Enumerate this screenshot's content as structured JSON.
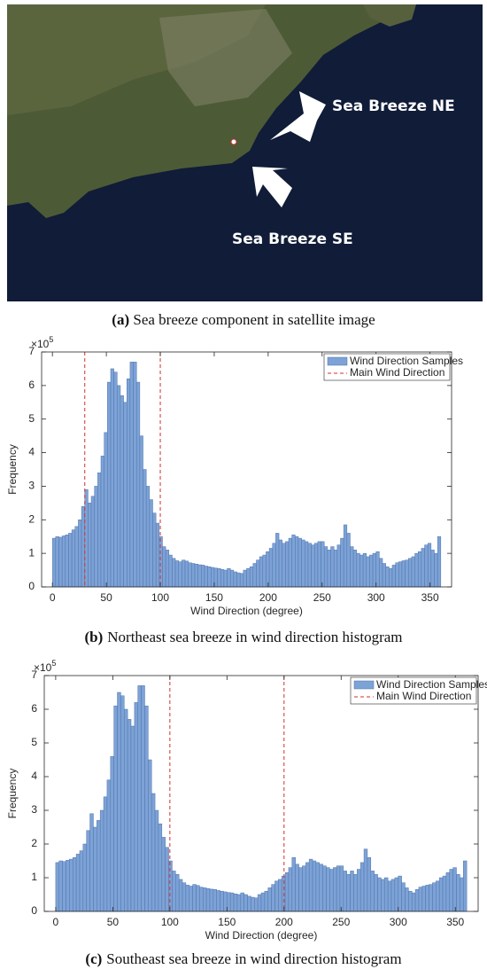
{
  "figure_a": {
    "labels": [
      "Sea Breeze NE",
      "Sea Breeze SE"
    ],
    "caption_label": "(a)",
    "caption": "Sea breeze component in satellite image"
  },
  "chart_data": [
    {
      "type": "histogram",
      "caption_label": "(b)",
      "caption": "Northeast sea breeze in wind direction histogram",
      "xlabel": "Wind Direction (degree)",
      "ylabel": "Frequency",
      "y_multiplier": {
        "base": "×10",
        "exponent": "5"
      },
      "xlim": [
        -10,
        370
      ],
      "xticks": [
        0,
        50,
        100,
        150,
        200,
        250,
        300,
        350
      ],
      "ylim": [
        0,
        7
      ],
      "yticks": [
        0,
        1,
        2,
        3,
        4,
        5,
        6,
        7
      ],
      "legend": "upper right",
      "series": [
        {
          "name": "Wind Direction Samples",
          "color": "#7da2d6"
        },
        {
          "name": "Main Wind Direction",
          "color": "#d0312d"
        }
      ],
      "vlines": [
        30,
        100
      ],
      "bins": [
        0,
        3,
        6,
        9,
        12,
        15,
        18,
        21,
        24,
        27,
        30,
        33,
        36,
        39,
        42,
        45,
        48,
        51,
        54,
        57,
        60,
        63,
        66,
        69,
        72,
        75,
        78,
        81,
        84,
        87,
        90,
        93,
        96,
        99,
        102,
        105,
        108,
        111,
        114,
        117,
        120,
        123,
        126,
        129,
        132,
        135,
        138,
        141,
        144,
        147,
        150,
        153,
        156,
        159,
        162,
        165,
        168,
        171,
        174,
        177,
        180,
        183,
        186,
        189,
        192,
        195,
        198,
        201,
        204,
        207,
        210,
        213,
        216,
        219,
        222,
        225,
        228,
        231,
        234,
        237,
        240,
        243,
        246,
        249,
        252,
        255,
        258,
        261,
        264,
        267,
        270,
        273,
        276,
        279,
        282,
        285,
        288,
        291,
        294,
        297,
        300,
        303,
        306,
        309,
        312,
        315,
        318,
        321,
        324,
        327,
        330,
        333,
        336,
        339,
        342,
        345,
        348,
        351,
        354,
        357,
        360
      ],
      "counts": [
        1.45,
        1.5,
        1.48,
        1.52,
        1.55,
        1.6,
        1.7,
        1.8,
        2.0,
        2.4,
        2.9,
        2.5,
        2.7,
        3.0,
        3.4,
        3.9,
        4.6,
        6.1,
        6.5,
        6.4,
        6.0,
        5.7,
        5.5,
        6.2,
        6.7,
        6.7,
        6.1,
        4.5,
        3.5,
        3.0,
        2.6,
        2.2,
        1.9,
        1.5,
        1.2,
        1.1,
        0.95,
        0.85,
        0.78,
        0.75,
        0.8,
        0.77,
        0.72,
        0.7,
        0.68,
        0.66,
        0.65,
        0.62,
        0.6,
        0.58,
        0.56,
        0.55,
        0.52,
        0.5,
        0.55,
        0.5,
        0.45,
        0.42,
        0.4,
        0.5,
        0.55,
        0.6,
        0.7,
        0.8,
        0.9,
        0.95,
        1.05,
        1.15,
        1.3,
        1.6,
        1.4,
        1.3,
        1.35,
        1.45,
        1.55,
        1.5,
        1.45,
        1.4,
        1.35,
        1.3,
        1.25,
        1.3,
        1.35,
        1.35,
        1.2,
        1.1,
        1.2,
        1.1,
        1.25,
        1.45,
        1.85,
        1.6,
        1.2,
        1.1,
        1.0,
        0.95,
        1.0,
        0.9,
        0.95,
        1.0,
        1.05,
        0.85,
        0.7,
        0.6,
        0.55,
        0.65,
        0.72,
        0.75,
        0.78,
        0.8,
        0.85,
        0.9,
        1.0,
        1.05,
        1.15,
        1.25,
        1.3,
        1.1,
        1.0,
        1.5
      ]
    },
    {
      "type": "histogram",
      "caption_label": "(c)",
      "caption": "Southeast sea breeze in wind direction histogram",
      "xlabel": "Wind Direction (degree)",
      "ylabel": "Frequency",
      "y_multiplier": {
        "base": "×10",
        "exponent": "5"
      },
      "xlim": [
        -10,
        370
      ],
      "xticks": [
        0,
        50,
        100,
        150,
        200,
        250,
        300,
        350
      ],
      "ylim": [
        0,
        7
      ],
      "yticks": [
        0,
        1,
        2,
        3,
        4,
        5,
        6,
        7
      ],
      "legend": "upper right",
      "series": [
        {
          "name": "Wind Direction Samples",
          "color": "#7da2d6"
        },
        {
          "name": "Main Wind Direction",
          "color": "#d0312d"
        }
      ],
      "vlines": [
        100,
        200
      ],
      "bins": [
        0,
        3,
        6,
        9,
        12,
        15,
        18,
        21,
        24,
        27,
        30,
        33,
        36,
        39,
        42,
        45,
        48,
        51,
        54,
        57,
        60,
        63,
        66,
        69,
        72,
        75,
        78,
        81,
        84,
        87,
        90,
        93,
        96,
        99,
        102,
        105,
        108,
        111,
        114,
        117,
        120,
        123,
        126,
        129,
        132,
        135,
        138,
        141,
        144,
        147,
        150,
        153,
        156,
        159,
        162,
        165,
        168,
        171,
        174,
        177,
        180,
        183,
        186,
        189,
        192,
        195,
        198,
        201,
        204,
        207,
        210,
        213,
        216,
        219,
        222,
        225,
        228,
        231,
        234,
        237,
        240,
        243,
        246,
        249,
        252,
        255,
        258,
        261,
        264,
        267,
        270,
        273,
        276,
        279,
        282,
        285,
        288,
        291,
        294,
        297,
        300,
        303,
        306,
        309,
        312,
        315,
        318,
        321,
        324,
        327,
        330,
        333,
        336,
        339,
        342,
        345,
        348,
        351,
        354,
        357,
        360
      ],
      "counts": [
        1.45,
        1.5,
        1.48,
        1.52,
        1.55,
        1.6,
        1.7,
        1.8,
        2.0,
        2.4,
        2.9,
        2.5,
        2.7,
        3.0,
        3.4,
        3.9,
        4.6,
        6.1,
        6.5,
        6.4,
        6.0,
        5.7,
        5.5,
        6.2,
        6.7,
        6.7,
        6.1,
        4.5,
        3.5,
        3.0,
        2.6,
        2.2,
        1.9,
        1.5,
        1.2,
        1.1,
        0.95,
        0.85,
        0.78,
        0.75,
        0.8,
        0.77,
        0.72,
        0.7,
        0.68,
        0.66,
        0.65,
        0.62,
        0.6,
        0.58,
        0.56,
        0.55,
        0.52,
        0.5,
        0.55,
        0.5,
        0.45,
        0.42,
        0.4,
        0.5,
        0.55,
        0.6,
        0.7,
        0.8,
        0.9,
        0.95,
        1.05,
        1.15,
        1.3,
        1.6,
        1.4,
        1.3,
        1.35,
        1.45,
        1.55,
        1.5,
        1.45,
        1.4,
        1.35,
        1.3,
        1.25,
        1.3,
        1.35,
        1.35,
        1.2,
        1.1,
        1.2,
        1.1,
        1.25,
        1.45,
        1.85,
        1.6,
        1.2,
        1.1,
        1.0,
        0.95,
        1.0,
        0.9,
        0.95,
        1.0,
        1.05,
        0.85,
        0.7,
        0.6,
        0.55,
        0.65,
        0.72,
        0.75,
        0.78,
        0.8,
        0.85,
        0.9,
        1.0,
        1.05,
        1.15,
        1.25,
        1.3,
        1.1,
        1.0,
        1.5
      ]
    }
  ]
}
